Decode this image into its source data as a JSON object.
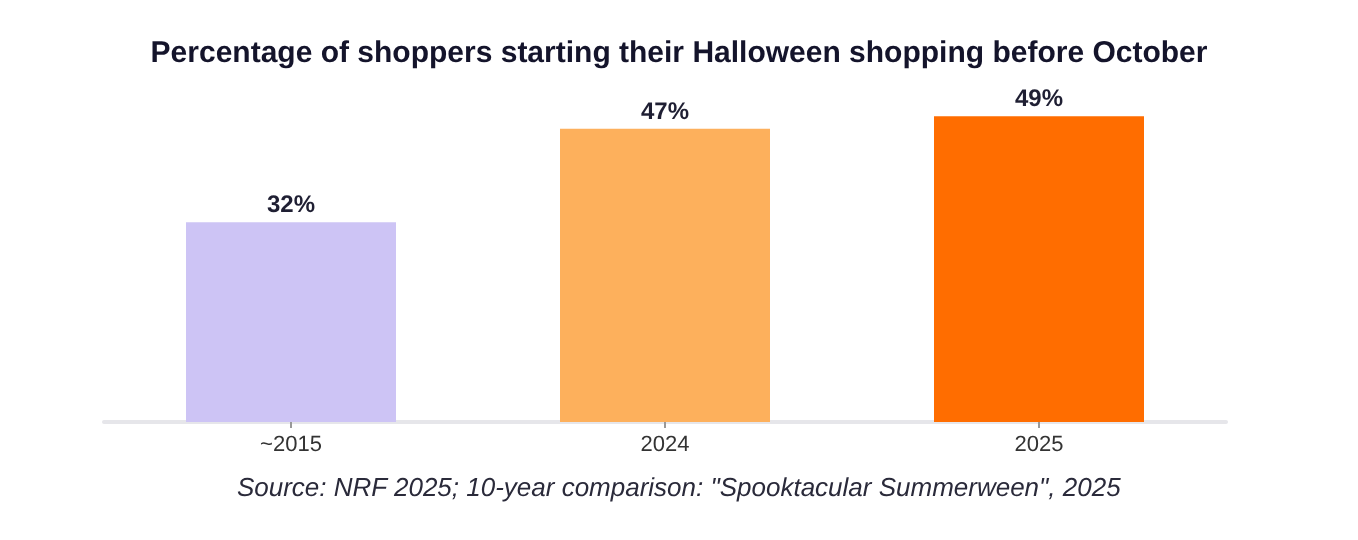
{
  "chart_data": {
    "type": "bar",
    "title": "Percentage of shoppers starting their Halloween shopping before October",
    "categories": [
      "~2015",
      "2024",
      "2025"
    ],
    "values": [
      32,
      47,
      49
    ],
    "colors": [
      "#cdc4f5",
      "#fdb05c",
      "#ff6d00"
    ],
    "data_labels": true,
    "value_labels": [
      "32%",
      "47%",
      "49%"
    ],
    "annotations": [
      "Source: NRF 2025; 10-year comparison: \"Spooktacular Summerween\", 2025"
    ]
  }
}
